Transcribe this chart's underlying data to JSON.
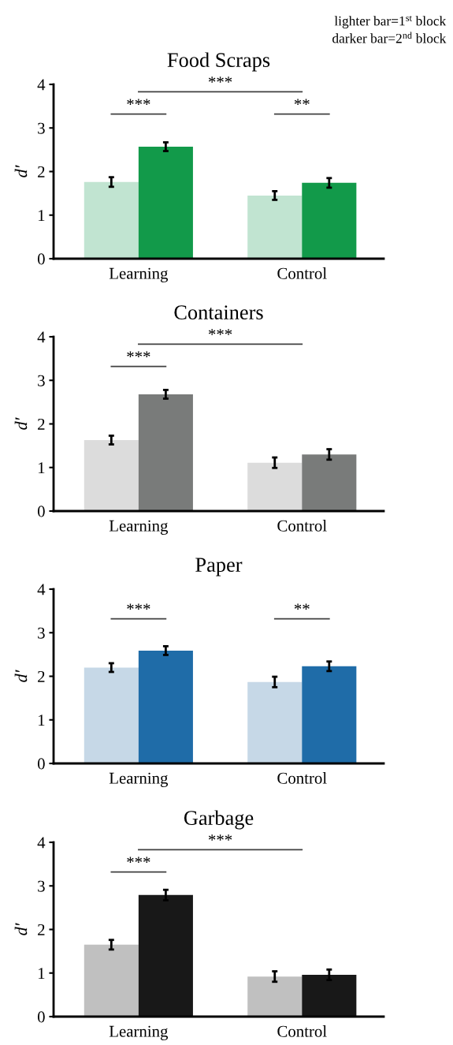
{
  "chart_data": [
    {
      "type": "bar",
      "title": "Food Scraps",
      "ylabel": "d′",
      "categories": [
        "Learning",
        "Control"
      ],
      "ylim": [
        0,
        4
      ],
      "yticks": [
        0,
        1,
        2,
        3,
        4
      ],
      "series": [
        {
          "color": "#c1e4d1",
          "values": [
            1.76,
            1.45
          ],
          "errors": [
            0.11,
            0.1
          ]
        },
        {
          "color": "#129a4a",
          "values": [
            2.57,
            1.74
          ],
          "errors": [
            0.1,
            0.11
          ]
        }
      ],
      "annotations": [
        "lighter bar=1$^{st}$ block",
        "darker bar=2$^{nd}$ block",
        "***",
        "***",
        "**"
      ]
    },
    {
      "type": "bar",
      "title": "Containers",
      "ylabel": "d′",
      "categories": [
        "Learning",
        "Control"
      ],
      "ylim": [
        0,
        4
      ],
      "yticks": [
        0,
        1,
        2,
        3,
        4
      ],
      "series": [
        {
          "color": "#dcdcdc",
          "values": [
            1.63,
            1.11
          ],
          "errors": [
            0.1,
            0.12
          ]
        },
        {
          "color": "#797b7a",
          "values": [
            2.68,
            1.3
          ],
          "errors": [
            0.1,
            0.12
          ]
        }
      ],
      "annotations": [
        "***",
        "***"
      ]
    },
    {
      "type": "bar",
      "title": "Paper",
      "ylabel": "d′",
      "categories": [
        "Learning",
        "Control"
      ],
      "ylim": [
        0,
        4
      ],
      "yticks": [
        0,
        1,
        2,
        3,
        4
      ],
      "series": [
        {
          "color": "#c6d8e7",
          "values": [
            2.2,
            1.87
          ],
          "errors": [
            0.1,
            0.12
          ]
        },
        {
          "color": "#1f6ca8",
          "values": [
            2.59,
            2.23
          ],
          "errors": [
            0.1,
            0.11
          ]
        }
      ],
      "annotations": [
        "***",
        "**"
      ]
    },
    {
      "type": "bar",
      "title": "Garbage",
      "ylabel": "d′",
      "categories": [
        "Learning",
        "Control"
      ],
      "ylim": [
        0,
        4
      ],
      "yticks": [
        0,
        1,
        2,
        3,
        4
      ],
      "series": [
        {
          "color": "#c0c0c0",
          "values": [
            1.65,
            0.92
          ],
          "errors": [
            0.11,
            0.12
          ]
        },
        {
          "color": "#181818",
          "values": [
            2.79,
            0.96
          ],
          "errors": [
            0.12,
            0.12
          ]
        }
      ],
      "annotations": [
        "***",
        "***"
      ]
    }
  ]
}
